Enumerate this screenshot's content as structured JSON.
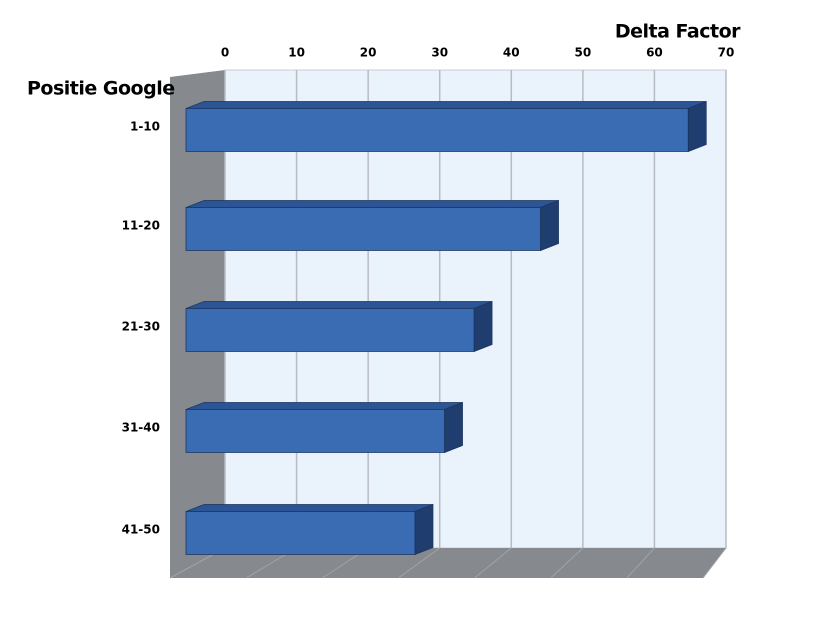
{
  "chart_data": {
    "type": "bar",
    "orientation": "horizontal",
    "three_d": true,
    "y_label": "Positie Google",
    "x_label": "Delta Factor",
    "categories": [
      "1-10",
      "11-20",
      "21-30",
      "31-40",
      "41-50"
    ],
    "values": [
      68,
      48,
      39,
      35,
      31
    ],
    "color": "#3a6cb3",
    "xlim": [
      0,
      70
    ],
    "xticks": [
      0,
      10,
      20,
      30,
      40,
      50,
      60,
      70
    ],
    "grid": true
  }
}
